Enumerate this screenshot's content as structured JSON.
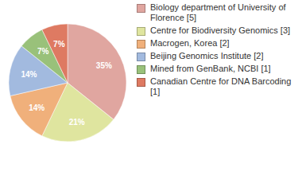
{
  "chart_data": {
    "type": "pie",
    "categories": [
      "Biology department of University of Florence [5]",
      "Centre for Biodiversity Genomics [3]",
      "Macrogen, Korea [2]",
      "Beijing Genomics Institute [2]",
      "Mined from GenBank, NCBI [1]",
      "Canadian Centre for DNA Barcoding [1]"
    ],
    "values": [
      35,
      21,
      14,
      14,
      7,
      7
    ],
    "value_labels": [
      "35%",
      "21%",
      "14%",
      "14%",
      "7%",
      "7%"
    ],
    "colors": [
      "#e0a6a0",
      "#dfe59f",
      "#f0b07b",
      "#a2badf",
      "#99c17a",
      "#de7a62"
    ],
    "data_labels": true,
    "legend": "right"
  }
}
